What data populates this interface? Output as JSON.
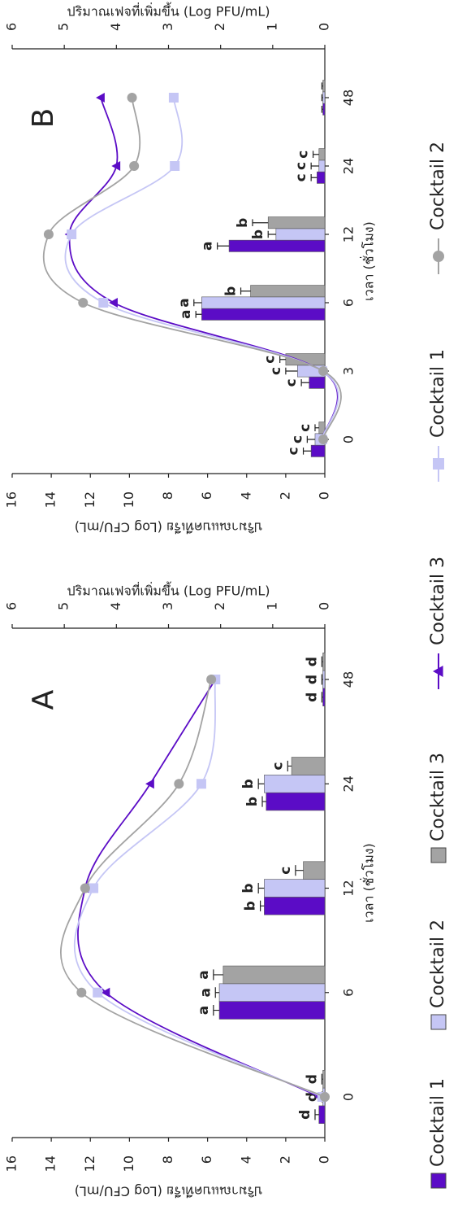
{
  "chart_data": [
    {
      "type": "bar-line",
      "panel": "A",
      "x_label": "เวลา (ชั่วโมง)",
      "y_label": "ปริมาณแบคทีเรีย (Log CFU/mL)",
      "y2_label": "ปริมาณเฟจที่เพิ่มขึ้น (Log PFU/mL)",
      "categories": [
        "0",
        "6",
        "12",
        "24",
        "48"
      ],
      "ylim": [
        0,
        16
      ],
      "yticks": [
        0,
        2,
        4,
        6,
        8,
        10,
        12,
        14,
        16
      ],
      "y2lim": [
        0,
        6
      ],
      "y2ticks": [
        0,
        1,
        2,
        3,
        4,
        5,
        6
      ],
      "series": [
        {
          "name": "Cocktail 1",
          "kind": "bar",
          "color": "#5b0cc6",
          "values": [
            0.3,
            5.4,
            3.1,
            3.0,
            0.1
          ],
          "errors": [
            0.2,
            0.3,
            0.2,
            0.2,
            0.05
          ],
          "letters": [
            "d",
            "a",
            "b",
            "b",
            "d"
          ]
        },
        {
          "name": "Cocktail 2",
          "kind": "bar",
          "color": "#c5c6f5",
          "values": [
            0.1,
            5.4,
            3.1,
            3.1,
            0.1
          ],
          "errors": [
            0.05,
            0.2,
            0.3,
            0.3,
            0.05
          ],
          "letters": [
            "d",
            "a",
            "b",
            "b",
            "d"
          ]
        },
        {
          "name": "Cocktail 3",
          "kind": "bar",
          "color": "#a3a3a3",
          "values": [
            0.1,
            5.2,
            1.1,
            1.7,
            0.1
          ],
          "errors": [
            0.05,
            0.5,
            0.4,
            0.2,
            0.05
          ],
          "letters": [
            "d",
            "a",
            "c",
            "c",
            "d"
          ]
        },
        {
          "name": "Cocktail 3",
          "kind": "line",
          "marker": "triangle",
          "axis": "y2",
          "color": "#5b0cc6",
          "values": [
            0.1,
            4.2,
            4.6,
            3.35,
            2.1
          ]
        },
        {
          "name": "Cocktail 1",
          "kind": "line",
          "marker": "square",
          "axis": "y2",
          "color": "#c5c6f5",
          "values": [
            0.05,
            4.36,
            4.44,
            2.37,
            2.1
          ]
        },
        {
          "name": "Cocktail 2",
          "kind": "line",
          "marker": "circle",
          "axis": "y2",
          "color": "#a3a3a3",
          "values": [
            0,
            4.67,
            4.6,
            2.8,
            2.18
          ]
        }
      ]
    },
    {
      "type": "bar-line",
      "panel": "B",
      "x_label": "เวลา (ชั่วโมง)",
      "y_label": "ปริมาณแบคทีเรีย (Log CFU/mL)",
      "y2_label": "ปริมาณเฟจที่เพิ่มขึ้น (Log PFU/mL)",
      "categories": [
        "0",
        "3",
        "6",
        "12",
        "24",
        "48"
      ],
      "ylim": [
        0,
        16
      ],
      "yticks": [
        0,
        2,
        4,
        6,
        8,
        10,
        12,
        14,
        16
      ],
      "y2lim": [
        0,
        6
      ],
      "y2ticks": [
        0,
        1,
        2,
        3,
        4,
        5,
        6
      ],
      "series": [
        {
          "kind": "bar",
          "color": "#5b0cc6",
          "values": [
            0.7,
            0.8,
            6.3,
            4.9,
            0.4,
            0.1
          ],
          "errors": [
            0.4,
            0.4,
            0.3,
            0.6,
            0.3,
            0.05
          ],
          "letters": [
            "c",
            "c",
            "a",
            "a",
            "c",
            null
          ]
        },
        {
          "kind": "bar",
          "color": "#c5c6f5",
          "values": [
            0.5,
            1.4,
            6.3,
            2.5,
            0.3,
            0.1
          ],
          "errors": [
            0.4,
            0.6,
            0.4,
            0.4,
            0.4,
            0.05
          ],
          "letters": [
            "c",
            "c",
            "a",
            "b",
            "c",
            null
          ]
        },
        {
          "kind": "bar",
          "color": "#a3a3a3",
          "values": [
            0.3,
            2.0,
            3.8,
            2.9,
            0.3,
            0.1
          ],
          "errors": [
            0.2,
            0.3,
            0.5,
            0.8,
            0.3,
            0.05
          ],
          "letters": [
            "c",
            "c",
            "b",
            "b",
            "c",
            null
          ]
        },
        {
          "kind": "line",
          "marker": "triangle",
          "axis": "y2",
          "color": "#5b0cc6",
          "values": [
            0.05,
            0.05,
            4.05,
            4.9,
            4.0,
            4.3
          ]
        },
        {
          "kind": "line",
          "marker": "square",
          "axis": "y2",
          "color": "#c5c6f5",
          "values": [
            0.05,
            0.05,
            4.25,
            4.86,
            2.88,
            2.9
          ]
        },
        {
          "kind": "line",
          "marker": "circle",
          "axis": "y2",
          "color": "#a3a3a3",
          "values": [
            0.03,
            0.03,
            4.64,
            5.3,
            3.66,
            3.7
          ]
        }
      ]
    }
  ]
}
